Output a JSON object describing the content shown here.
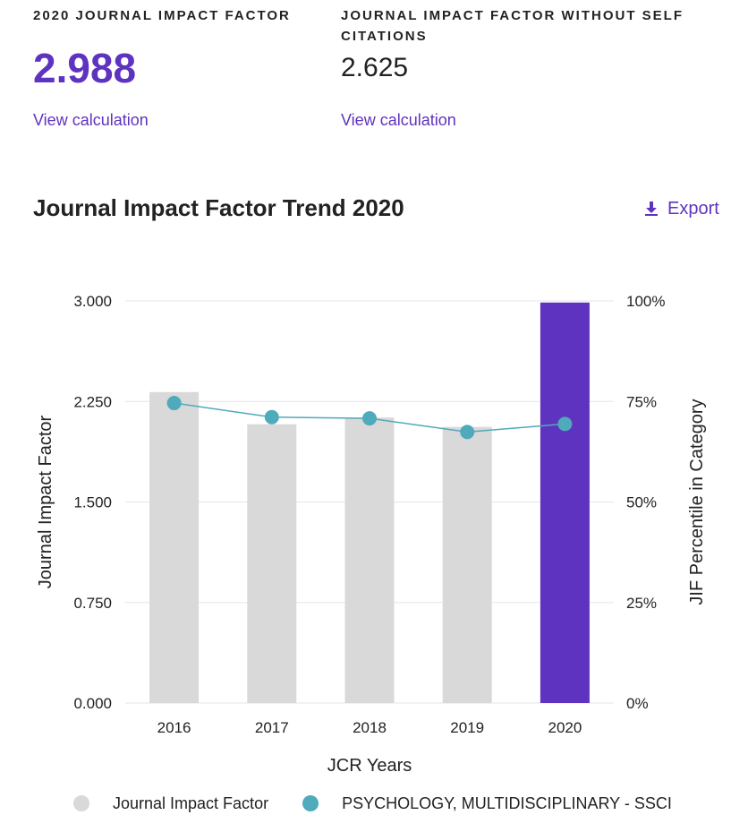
{
  "metrics": [
    {
      "label": "2020 JOURNAL IMPACT FACTOR",
      "value": "2.988",
      "link": "View calculation"
    },
    {
      "label": "JOURNAL IMPACT FACTOR WITHOUT SELF CITATIONS",
      "value": "2.625",
      "link": "View calculation"
    }
  ],
  "trend": {
    "title": "Journal Impact Factor Trend 2020",
    "export_label": "Export",
    "export_icon": "download-icon"
  },
  "colors": {
    "accent": "#5e33bf",
    "bar": "#d9d9d9",
    "line": "#4faabb",
    "grid": "#e6e6e6"
  },
  "chart_data": {
    "type": "bar",
    "xlabel": "JCR Years",
    "ylabel": "Journal Impact Factor",
    "y2label": "JIF Percentile in Category",
    "categories": [
      "2016",
      "2017",
      "2018",
      "2019",
      "2020"
    ],
    "ylim": [
      0,
      3
    ],
    "yticks": [
      "0.000",
      "0.750",
      "1.500",
      "2.250",
      "3.000"
    ],
    "y2lim": [
      0,
      100
    ],
    "y2ticks": [
      "0%",
      "25%",
      "50%",
      "75%",
      "100%"
    ],
    "grid": true,
    "legend_position": "bottom",
    "series": [
      {
        "name": "Journal Impact Factor",
        "type": "bar",
        "axis": "left",
        "values": [
          2.32,
          2.08,
          2.13,
          2.06,
          2.988
        ],
        "highlight_index": 4
      },
      {
        "name": "PSYCHOLOGY, MULTIDISCIPLINARY - SSCI",
        "type": "line",
        "axis": "right",
        "values": [
          74.6,
          71.1,
          70.8,
          67.4,
          69.4
        ]
      }
    ]
  }
}
